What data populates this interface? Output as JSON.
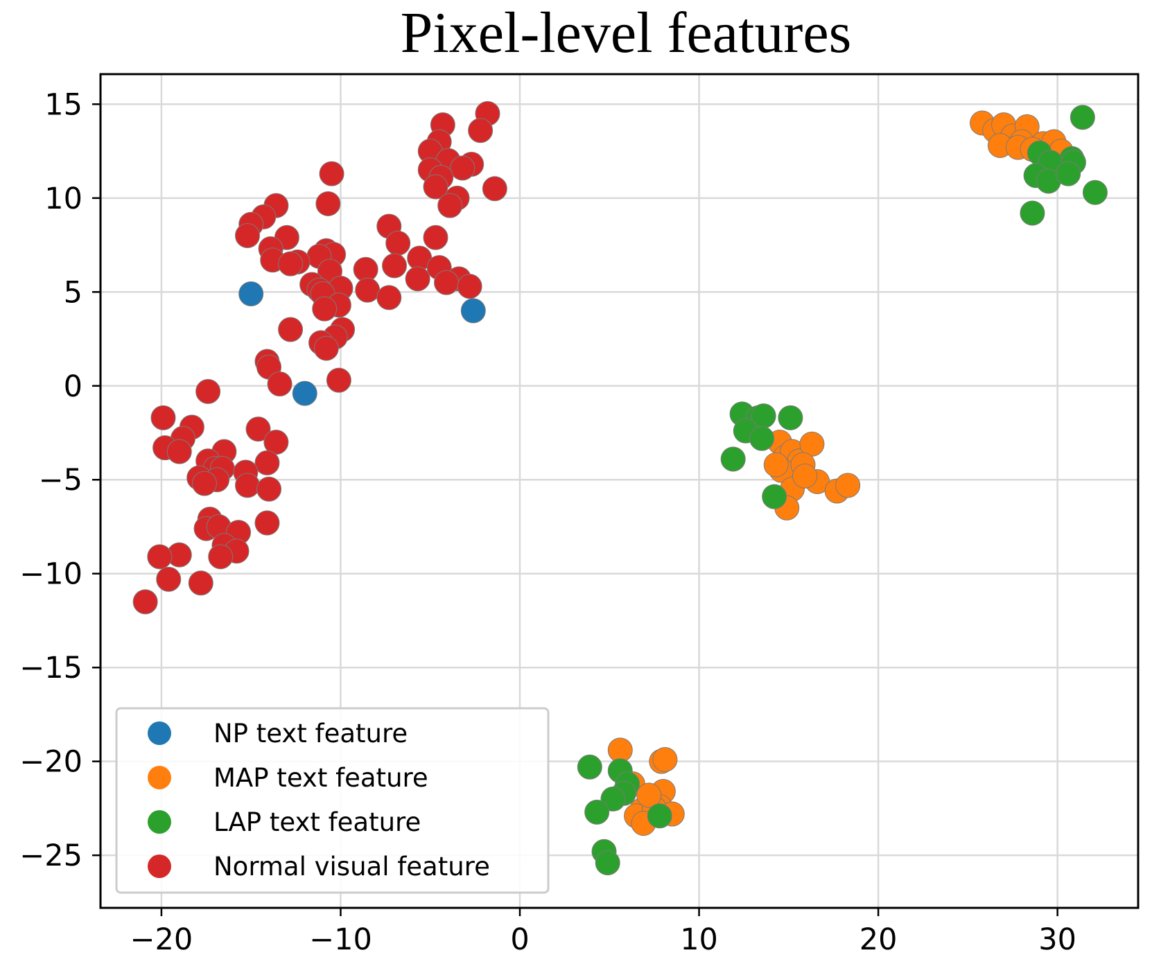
{
  "chart_data": {
    "type": "scatter",
    "title": "Pixel-level features",
    "xlabel": "",
    "ylabel": "",
    "xlim": [
      -23.4,
      34.5
    ],
    "ylim": [
      -27.8,
      16.6
    ],
    "xticks": [
      -20,
      -10,
      0,
      10,
      20,
      30
    ],
    "yticks": [
      15,
      10,
      5,
      0,
      -5,
      -10,
      -15,
      -20,
      -25
    ],
    "xtick_labels": [
      "−20",
      "−10",
      "0",
      "10",
      "20",
      "30"
    ],
    "ytick_labels": [
      "15",
      "10",
      "5",
      "0",
      "−5",
      "−10",
      "−15",
      "−20",
      "−25"
    ],
    "grid": true,
    "legend_position": "lower-left",
    "series": [
      {
        "name": "NP text feature",
        "color": "#1f77b4",
        "points": [
          [
            -15.0,
            4.9
          ],
          [
            -2.6,
            4.0
          ],
          [
            -12.0,
            -0.4
          ]
        ]
      },
      {
        "name": "MAP text feature",
        "color": "#ff7f0e",
        "points": [
          [
            25.8,
            14.0
          ],
          [
            26.5,
            13.6
          ],
          [
            27.0,
            13.9
          ],
          [
            27.5,
            13.3
          ],
          [
            28.3,
            13.8
          ],
          [
            28.0,
            13.0
          ],
          [
            26.8,
            12.8
          ],
          [
            27.8,
            12.7
          ],
          [
            29.2,
            12.9
          ],
          [
            29.8,
            13.0
          ],
          [
            30.2,
            12.5
          ],
          [
            28.6,
            12.6
          ],
          [
            14.5,
            -3.0
          ],
          [
            14.8,
            -3.8
          ],
          [
            15.2,
            -3.5
          ],
          [
            15.6,
            -4.0
          ],
          [
            16.3,
            -3.1
          ],
          [
            14.6,
            -4.5
          ],
          [
            15.8,
            -4.2
          ],
          [
            16.6,
            -5.1
          ],
          [
            15.2,
            -5.5
          ],
          [
            14.9,
            -6.5
          ],
          [
            17.7,
            -5.6
          ],
          [
            18.3,
            -5.3
          ],
          [
            15.9,
            -4.8
          ],
          [
            14.3,
            -4.2
          ],
          [
            5.6,
            -19.4
          ],
          [
            7.9,
            -20.0
          ],
          [
            8.1,
            -19.9
          ],
          [
            6.3,
            -21.2
          ],
          [
            8.0,
            -21.6
          ],
          [
            7.8,
            -22.4
          ],
          [
            6.8,
            -22.6
          ],
          [
            6.5,
            -22.9
          ],
          [
            7.5,
            -22.5
          ],
          [
            8.5,
            -22.8
          ],
          [
            6.9,
            -23.3
          ],
          [
            7.2,
            -21.8
          ]
        ]
      },
      {
        "name": "LAP text feature",
        "color": "#2ca02c",
        "points": [
          [
            31.4,
            14.3
          ],
          [
            29.0,
            12.4
          ],
          [
            30.8,
            12.1
          ],
          [
            29.6,
            11.9
          ],
          [
            30.9,
            11.9
          ],
          [
            28.8,
            11.2
          ],
          [
            29.5,
            10.9
          ],
          [
            30.6,
            11.3
          ],
          [
            32.1,
            10.3
          ],
          [
            28.6,
            9.2
          ],
          [
            12.4,
            -1.5
          ],
          [
            13.3,
            -1.7
          ],
          [
            13.6,
            -1.6
          ],
          [
            15.1,
            -1.7
          ],
          [
            12.6,
            -2.4
          ],
          [
            13.5,
            -2.8
          ],
          [
            11.9,
            -3.9
          ],
          [
            14.2,
            -5.9
          ],
          [
            3.9,
            -20.3
          ],
          [
            5.6,
            -20.5
          ],
          [
            6.0,
            -21.2
          ],
          [
            5.8,
            -21.7
          ],
          [
            5.2,
            -22.0
          ],
          [
            4.3,
            -22.7
          ],
          [
            7.8,
            -22.9
          ],
          [
            4.7,
            -24.8
          ],
          [
            4.9,
            -25.4
          ]
        ]
      },
      {
        "name": "Normal visual feature",
        "color": "#d62728",
        "points": [
          [
            -1.8,
            14.5
          ],
          [
            -4.3,
            13.9
          ],
          [
            -2.2,
            13.6
          ],
          [
            -4.5,
            13.0
          ],
          [
            -5.0,
            12.5
          ],
          [
            -4.0,
            12.0
          ],
          [
            -2.7,
            11.8
          ],
          [
            -3.2,
            11.6
          ],
          [
            -5.0,
            11.5
          ],
          [
            -10.5,
            11.3
          ],
          [
            -4.4,
            11.1
          ],
          [
            -4.7,
            10.6
          ],
          [
            -1.4,
            10.5
          ],
          [
            -3.5,
            10.0
          ],
          [
            -3.9,
            9.6
          ],
          [
            -10.7,
            9.7
          ],
          [
            -13.6,
            9.6
          ],
          [
            -14.3,
            9.0
          ],
          [
            -15.0,
            8.6
          ],
          [
            -7.3,
            8.5
          ],
          [
            -15.2,
            8.0
          ],
          [
            -13.0,
            7.9
          ],
          [
            -4.7,
            7.9
          ],
          [
            -6.8,
            7.6
          ],
          [
            -13.9,
            7.3
          ],
          [
            -10.8,
            7.2
          ],
          [
            -10.4,
            7.0
          ],
          [
            -11.2,
            6.9
          ],
          [
            -5.6,
            6.8
          ],
          [
            -13.8,
            6.7
          ],
          [
            -12.4,
            6.6
          ],
          [
            -12.8,
            6.5
          ],
          [
            -7.0,
            6.4
          ],
          [
            -4.5,
            6.3
          ],
          [
            -8.6,
            6.2
          ],
          [
            -10.6,
            6.1
          ],
          [
            -3.4,
            5.7
          ],
          [
            -5.7,
            5.7
          ],
          [
            -4.1,
            5.5
          ],
          [
            -11.6,
            5.4
          ],
          [
            -2.8,
            5.3
          ],
          [
            -10.0,
            5.2
          ],
          [
            -8.5,
            5.1
          ],
          [
            -11.2,
            5.1
          ],
          [
            -11.0,
            4.9
          ],
          [
            -7.3,
            4.7
          ],
          [
            -10.1,
            4.3
          ],
          [
            -10.9,
            4.1
          ],
          [
            -12.8,
            3.0
          ],
          [
            -9.9,
            3.0
          ],
          [
            -10.3,
            2.6
          ],
          [
            -11.1,
            2.3
          ],
          [
            -10.8,
            2.0
          ],
          [
            -14.1,
            1.3
          ],
          [
            -14.0,
            1.0
          ],
          [
            -10.1,
            0.3
          ],
          [
            -13.4,
            0.1
          ],
          [
            -17.4,
            -0.3
          ],
          [
            -19.9,
            -1.7
          ],
          [
            -18.3,
            -2.2
          ],
          [
            -14.6,
            -2.3
          ],
          [
            -18.8,
            -2.8
          ],
          [
            -19.8,
            -3.3
          ],
          [
            -13.6,
            -3.0
          ],
          [
            -19.0,
            -3.5
          ],
          [
            -16.5,
            -3.5
          ],
          [
            -17.4,
            -4.0
          ],
          [
            -14.1,
            -4.1
          ],
          [
            -17.0,
            -4.4
          ],
          [
            -16.6,
            -4.4
          ],
          [
            -15.3,
            -4.6
          ],
          [
            -17.9,
            -4.9
          ],
          [
            -16.9,
            -5.0
          ],
          [
            -17.6,
            -5.2
          ],
          [
            -15.2,
            -5.3
          ],
          [
            -14.0,
            -5.5
          ],
          [
            -17.3,
            -7.1
          ],
          [
            -14.1,
            -7.3
          ],
          [
            -17.5,
            -7.6
          ],
          [
            -16.8,
            -7.5
          ],
          [
            -15.7,
            -7.8
          ],
          [
            -16.5,
            -8.5
          ],
          [
            -19.0,
            -9.0
          ],
          [
            -15.8,
            -8.8
          ],
          [
            -16.7,
            -9.1
          ],
          [
            -20.1,
            -9.1
          ],
          [
            -19.6,
            -10.3
          ],
          [
            -17.8,
            -10.5
          ],
          [
            -20.9,
            -11.5
          ]
        ]
      }
    ]
  }
}
